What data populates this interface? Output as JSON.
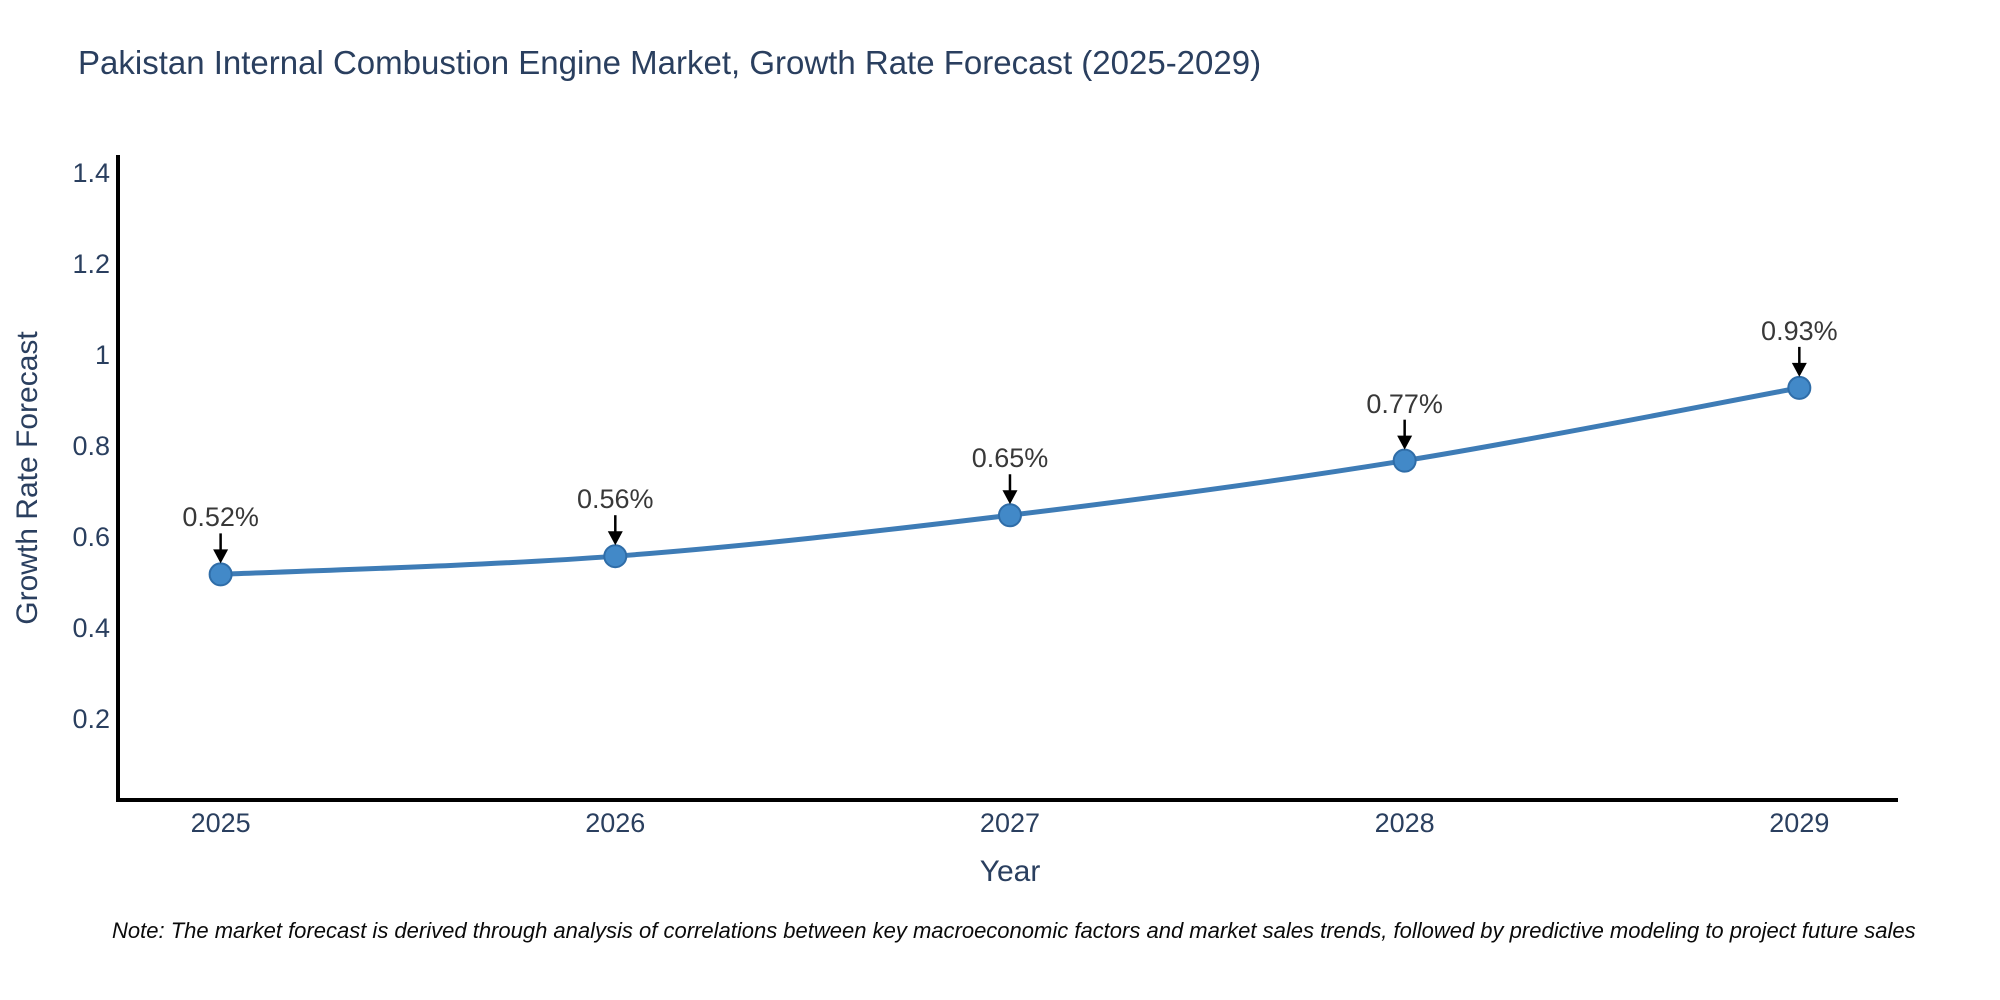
{
  "chart_data": {
    "type": "line",
    "title": "Pakistan Internal Combustion Engine Market, Growth Rate Forecast (2025-2029)",
    "xlabel": "Year",
    "ylabel": "Growth Rate Forecast",
    "x": [
      2025,
      2026,
      2027,
      2028,
      2029
    ],
    "series": [
      {
        "name": "Growth Rate Forecast",
        "values": [
          0.52,
          0.56,
          0.65,
          0.77,
          0.93
        ]
      }
    ],
    "point_labels": [
      "0.52%",
      "0.56%",
      "0.65%",
      "0.77%",
      "0.93%"
    ],
    "xtick_labels": [
      "2025",
      "2026",
      "2027",
      "2028",
      "2029"
    ],
    "yticks": [
      0.2,
      0.4,
      0.6,
      0.8,
      1,
      1.2,
      1.4
    ],
    "ytick_labels": [
      "0.2",
      "0.4",
      "0.6",
      "0.8",
      "1",
      "1.2",
      "1.4"
    ],
    "xlim": [
      2024.74,
      2029.25
    ],
    "ylim": [
      0.024,
      1.442
    ],
    "grid": false,
    "legend": "none",
    "colors": {
      "line": "#3e7cb6",
      "marker": "#4289c8",
      "marker_edge": "#2f6da8",
      "axis": "#000000",
      "arrow": "#000000",
      "text": "#2a3f5f",
      "annotation_text": "#383838",
      "background": "#ffffff"
    }
  },
  "note": "Note: The market forecast is derived through analysis of correlations between key macroeconomic factors and market sales trends, followed by predictive modeling to project future sales"
}
